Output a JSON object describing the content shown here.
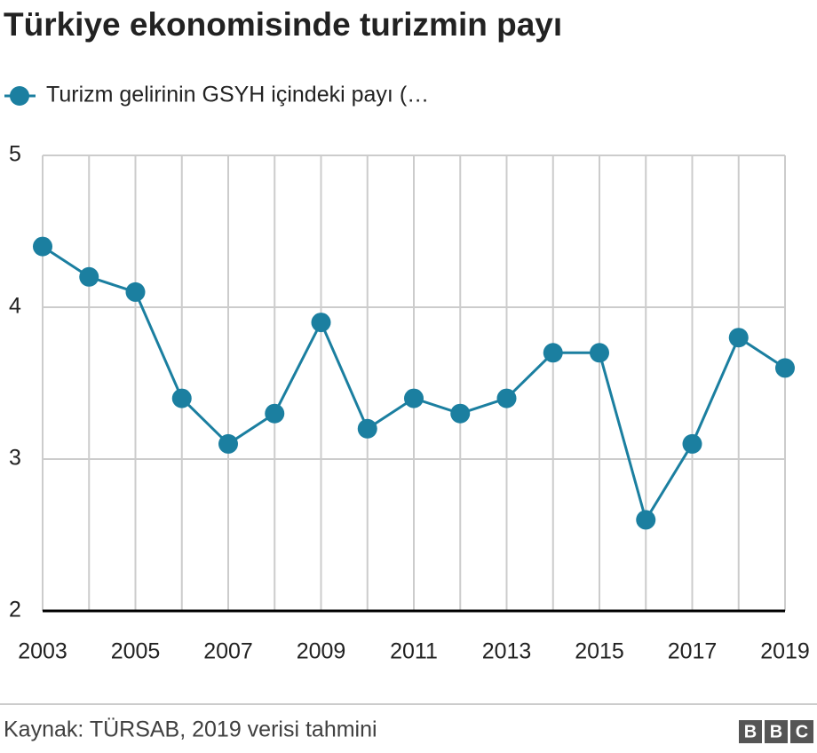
{
  "chart_data": {
    "type": "line",
    "title": "Türkiye ekonomisinde turizmin payı",
    "x": [
      2003,
      2004,
      2005,
      2006,
      2007,
      2008,
      2009,
      2010,
      2011,
      2012,
      2013,
      2014,
      2015,
      2016,
      2017,
      2018,
      2019
    ],
    "series": [
      {
        "name": "Turizm gelirinin GSYH içindeki payı (…",
        "color": "#1b7fa0",
        "values": [
          4.4,
          4.2,
          4.1,
          3.4,
          3.1,
          3.3,
          3.9,
          3.2,
          3.4,
          3.3,
          3.4,
          3.7,
          3.7,
          2.6,
          3.1,
          3.8,
          3.6
        ]
      }
    ],
    "xlim": [
      2003,
      2019
    ],
    "xticks": [
      2003,
      2005,
      2007,
      2009,
      2011,
      2013,
      2015,
      2017,
      2019
    ],
    "ylim": [
      2,
      5
    ],
    "yticks": [
      2,
      3,
      4,
      5
    ],
    "grid": true,
    "source": "Kaynak: TÜRSAB, 2019 verisi tahmini",
    "logo": [
      "B",
      "B",
      "C"
    ]
  }
}
